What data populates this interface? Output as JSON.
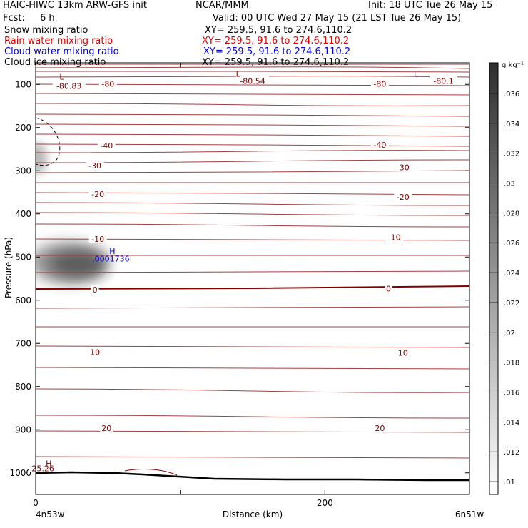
{
  "header": {
    "title": "HAIC-HIWC 13km ARW-GFS init",
    "org": "NCAR/MMM",
    "init": "Init: 18 UTC Tue 26 May 15",
    "fcst_label": "Fcst:",
    "fcst_value": "6 h",
    "valid": "Valid: 00 UTC Wed 27 May 15 (21 LST Tue 26 May 15)",
    "fields": [
      {
        "name": "Snow mixing ratio",
        "xy": "XY= 259.5, 91.6 to 274.6,110.2",
        "color": "#000000"
      },
      {
        "name": "Rain water mixing ratio",
        "xy": "XY= 259.5, 91.6 to 274.6,110.2",
        "color": "#e00000"
      },
      {
        "name": "Cloud water mixing ratio",
        "xy": "XY= 259.5, 91.6 to 274.6,110.2",
        "color": "#0000e0"
      },
      {
        "name": "Cloud ice mixing ratio",
        "xy": "XY= 259.5, 91.6 to 274.6,110.2",
        "color": "#000000"
      }
    ]
  },
  "chart_data": {
    "type": "cross-section",
    "xlabel": "Distance (km)",
    "ylabel": "Pressure (hPa)",
    "xlim": [
      0,
      300
    ],
    "ylim": [
      1050,
      50
    ],
    "x_ticks": [
      0,
      100,
      200,
      300
    ],
    "x_tick_labels": [
      "0",
      "",
      "200",
      ""
    ],
    "y_ticks": [
      100,
      200,
      300,
      400,
      500,
      600,
      700,
      800,
      900,
      1000
    ],
    "y_tick_labels": [
      "100",
      "200",
      "300",
      "400",
      "500",
      "600",
      "700",
      "800",
      "900",
      "1000"
    ],
    "x_start_label": "4n53w",
    "x_end_label": "6n51w",
    "temperature_labels": [
      {
        "text": "-80.83",
        "x": 23,
        "p": 104
      },
      {
        "text": "-80",
        "x": 50,
        "p": 99
      },
      {
        "text": "-80.54",
        "x": 150,
        "p": 92
      },
      {
        "text": "-80",
        "x": 238,
        "p": 99
      },
      {
        "text": "-80.1",
        "x": 282,
        "p": 92
      },
      {
        "text": "-40",
        "x": 49,
        "p": 242
      },
      {
        "text": "-40",
        "x": 238,
        "p": 240
      },
      {
        "text": "-30",
        "x": 41,
        "p": 288
      },
      {
        "text": "-30",
        "x": 254,
        "p": 292
      },
      {
        "text": "-20",
        "x": 43,
        "p": 354
      },
      {
        "text": "-20",
        "x": 254,
        "p": 361
      },
      {
        "text": "-10",
        "x": 43,
        "p": 458
      },
      {
        "text": "-10",
        "x": 248,
        "p": 454
      },
      {
        "text": "0",
        "x": 41,
        "p": 576
      },
      {
        "text": "0",
        "x": 244,
        "p": 573
      },
      {
        "text": "10",
        "x": 41,
        "p": 720
      },
      {
        "text": "10",
        "x": 254,
        "p": 722
      },
      {
        "text": "20",
        "x": 49,
        "p": 896
      },
      {
        "text": "20",
        "x": 238,
        "p": 896
      },
      {
        "text": "25.26",
        "x": 5,
        "p": 990
      }
    ],
    "extrema_labels": [
      {
        "text": "L",
        "x": 18,
        "p": 82,
        "color": "#800000"
      },
      {
        "text": "L",
        "x": 140,
        "p": 76,
        "color": "#800000"
      },
      {
        "text": "L",
        "x": 263,
        "p": 76,
        "color": "#800000"
      },
      {
        "text": "H",
        "x": 9,
        "p": 978,
        "color": "#800000"
      },
      {
        "text": "H",
        "x": 53,
        "p": 486,
        "color": "#0000e0"
      },
      {
        "text": ".0001736",
        "x": 52,
        "p": 504,
        "color": "#0000e0"
      }
    ],
    "cloud_water_max": 0.0001736,
    "colorbar": {
      "unit": "g kg⁻¹",
      "labels": [
        ".036",
        ".034",
        ".032",
        ".03",
        ".028",
        ".026",
        ".024",
        ".022",
        ".02",
        ".018",
        ".016",
        ".014",
        ".012",
        ".01"
      ]
    }
  }
}
